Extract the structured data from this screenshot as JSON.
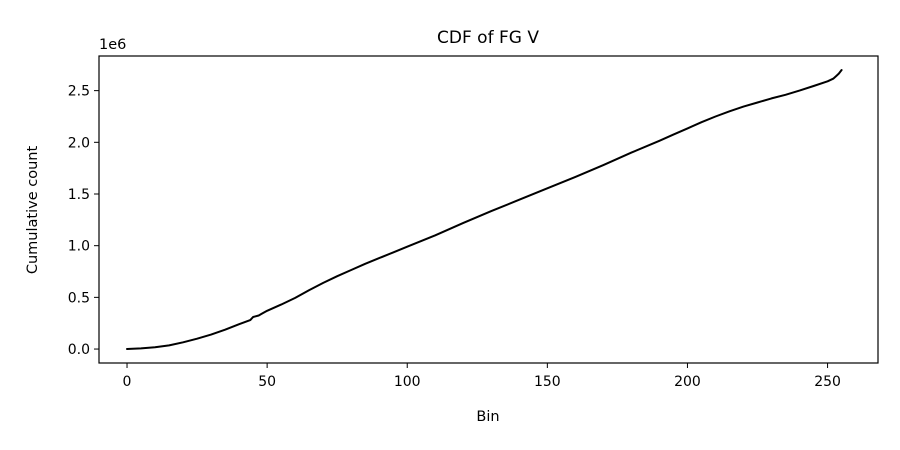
{
  "chart_data": {
    "type": "line",
    "title": "CDF of FG V",
    "xlabel": "Bin",
    "ylabel": "Cumulative count",
    "y_offset_text": "1e6",
    "xlim": [
      -10,
      268
    ],
    "ylim": [
      -0.135,
      2.835
    ],
    "x_ticks": [
      0,
      50,
      100,
      150,
      200,
      250
    ],
    "x_tick_labels": [
      "0",
      "50",
      "100",
      "150",
      "200",
      "250"
    ],
    "y_ticks": [
      0.0,
      0.5,
      1.0,
      1.5,
      2.0,
      2.5
    ],
    "y_tick_labels": [
      "0.0",
      "0.5",
      "1.0",
      "1.5",
      "2.0",
      "2.5"
    ],
    "y_unit_multiplier": 1000000,
    "grid": false,
    "line_color": "#000000",
    "series": [
      {
        "x": [
          0,
          5,
          10,
          15,
          20,
          25,
          30,
          35,
          40,
          44,
          45,
          47,
          48,
          50,
          55,
          60,
          65,
          70,
          75,
          80,
          85,
          90,
          95,
          100,
          110,
          120,
          130,
          140,
          150,
          160,
          170,
          180,
          190,
          195,
          200,
          205,
          210,
          215,
          220,
          225,
          230,
          235,
          240,
          245,
          250,
          252,
          253,
          254,
          255
        ],
        "y": [
          0.0,
          0.006,
          0.017,
          0.035,
          0.065,
          0.1,
          0.14,
          0.187,
          0.24,
          0.28,
          0.31,
          0.325,
          0.34,
          0.37,
          0.43,
          0.495,
          0.57,
          0.64,
          0.705,
          0.765,
          0.825,
          0.88,
          0.935,
          0.99,
          1.1,
          1.22,
          1.335,
          1.445,
          1.555,
          1.665,
          1.78,
          1.9,
          2.015,
          2.075,
          2.135,
          2.195,
          2.25,
          2.3,
          2.345,
          2.385,
          2.425,
          2.46,
          2.5,
          2.545,
          2.59,
          2.615,
          2.64,
          2.665,
          2.7
        ]
      }
    ]
  }
}
